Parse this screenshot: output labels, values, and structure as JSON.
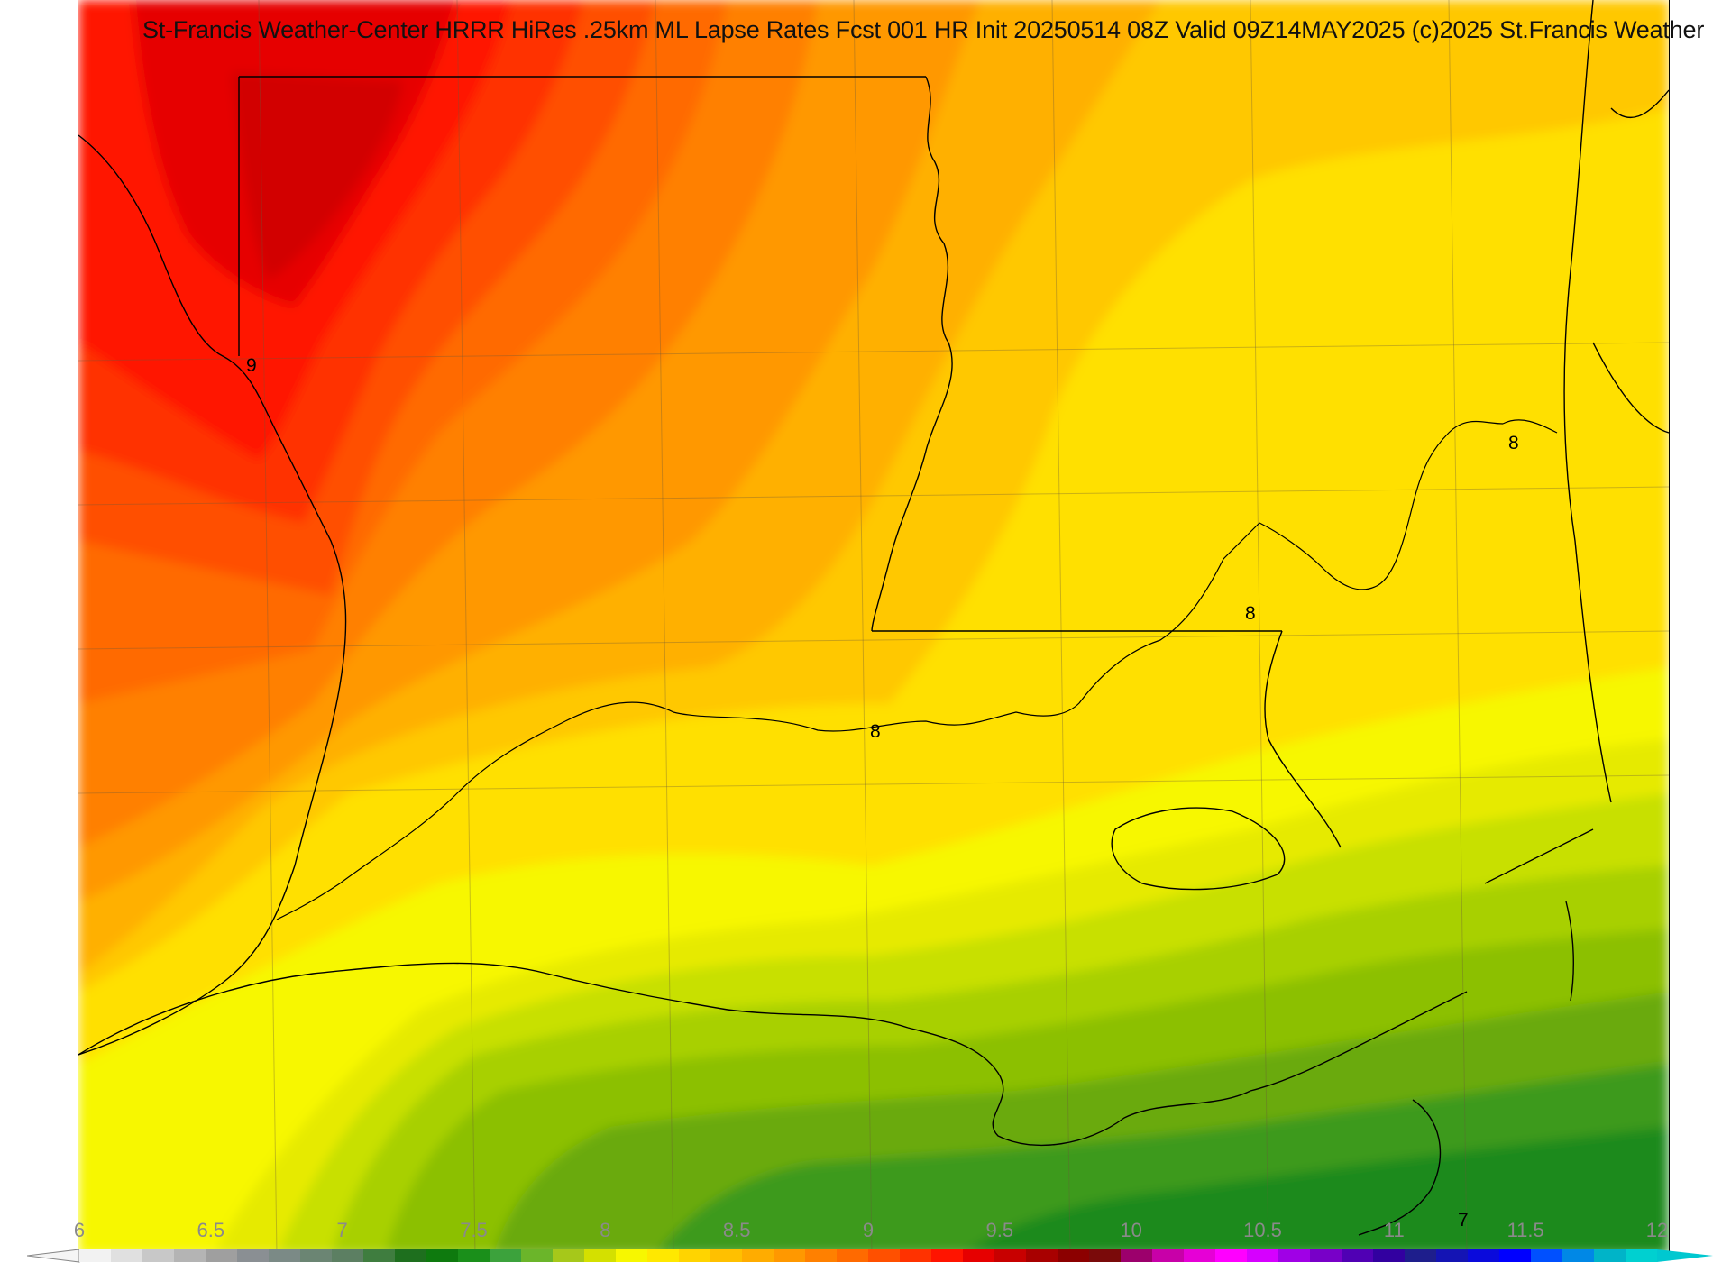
{
  "title": "St-Francis Weather-Center HRRR HiRes .25km ML Lapse Rates  Fcst 001 HR Init 20250514 08Z  Valid 09Z14MAY2025    (c)2025 St.Francis Weather",
  "contour_labels": [
    "9",
    "8",
    "8",
    "8",
    "7"
  ],
  "colorbar": {
    "ticks": [
      "6",
      "6.5",
      "7",
      "7.5",
      "8",
      "8.5",
      "9",
      "9.5",
      "10",
      "10.5",
      "11",
      "11.5",
      "12"
    ],
    "min": 6,
    "max": 12,
    "colors": [
      "#f2f2f2",
      "#e0e0e0",
      "#c8c8c8",
      "#b4b4b4",
      "#9f9f9f",
      "#8a8f93",
      "#7b8a86",
      "#6b8573",
      "#5c7f62",
      "#3f7d3f",
      "#1e6f1e",
      "#0e7a0e",
      "#1a8f1a",
      "#3ca23c",
      "#6bb52a",
      "#a6c81a",
      "#d4e000",
      "#f7f700",
      "#ffe800",
      "#ffd400",
      "#ffc000",
      "#ffac00",
      "#ff9800",
      "#ff8000",
      "#ff6a00",
      "#ff5000",
      "#ff3200",
      "#ff1400",
      "#e60000",
      "#c80000",
      "#a80000",
      "#8c0000",
      "#7a0a0a",
      "#9c006c",
      "#c800a8",
      "#e600d6",
      "#ff00ff",
      "#d600ff",
      "#a000e6",
      "#7800c8",
      "#5000b4",
      "#3200a0",
      "#1e1e8c",
      "#1414b4",
      "#0a0adc",
      "#0000ff",
      "#0050ff",
      "#0088e6",
      "#00b4c8",
      "#00d0d0"
    ]
  }
}
